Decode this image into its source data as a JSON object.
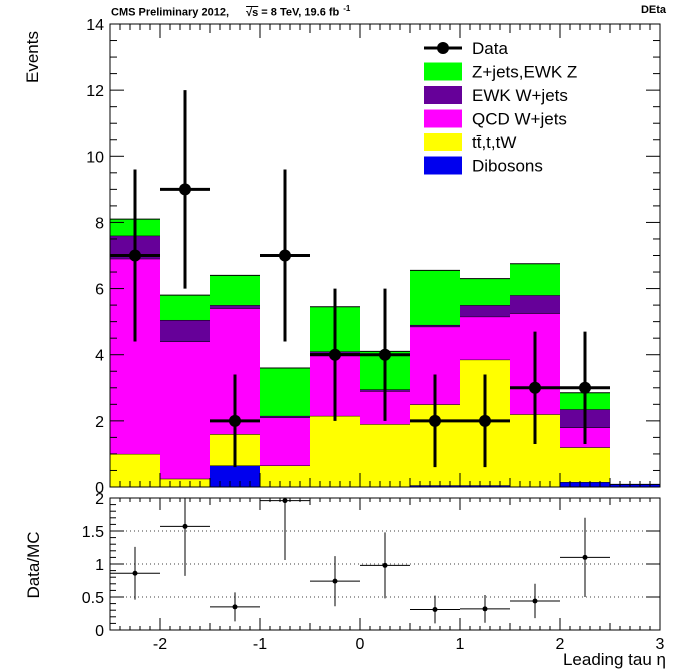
{
  "header": {
    "left_prefix": "CMS Preliminary 2012,",
    "sqrt": "√s",
    "energy": " = 8 TeV, 19.6 fb",
    "exponent": "-1",
    "right": "DEta"
  },
  "chart_data": [
    {
      "type": "bar",
      "subtype": "stacked-histogram-with-data-points",
      "ylabel": "Events",
      "ylim": [
        0,
        14
      ],
      "xlim": [
        -2.5,
        3
      ],
      "yticks": [
        0,
        2,
        4,
        6,
        8,
        10,
        12,
        14
      ],
      "bin_edges": [
        -2.5,
        -2,
        -1.5,
        -1,
        -0.5,
        0,
        0.5,
        1,
        1.5,
        2,
        2.5,
        3
      ],
      "stack_order_bottom_to_top": [
        "Dibosons",
        "tt,t,tW",
        "QCD W+jets",
        "EWK W+jets",
        "Z+jets,EWK Z"
      ],
      "series": [
        {
          "name": "Dibosons",
          "color": "#0000ee",
          "values": [
            0.0,
            0.0,
            0.65,
            0.0,
            0.0,
            0.0,
            0.05,
            0.05,
            0.0,
            0.15,
            0.08
          ]
        },
        {
          "name": "tt,t,tW",
          "color": "#ffff00",
          "values": [
            1.0,
            0.25,
            0.95,
            0.65,
            2.15,
            1.9,
            2.45,
            3.8,
            2.2,
            1.05,
            0.0
          ]
        },
        {
          "name": "QCD W+jets",
          "color": "#ff00ff",
          "values": [
            5.9,
            4.15,
            3.8,
            1.45,
            1.9,
            1.0,
            2.35,
            1.3,
            3.05,
            0.6,
            0.0
          ]
        },
        {
          "name": "EWK W+jets",
          "color": "#660099",
          "values": [
            0.7,
            0.65,
            0.1,
            0.05,
            0.05,
            0.05,
            0.05,
            0.35,
            0.55,
            0.55,
            0.0
          ]
        },
        {
          "name": "Z+jets,EWK Z",
          "color": "#00ff00",
          "values": [
            0.5,
            0.75,
            0.9,
            1.45,
            1.35,
            1.15,
            1.65,
            0.8,
            0.95,
            0.5,
            0.0
          ]
        }
      ],
      "data_points": {
        "name": "Data",
        "x": [
          -2.25,
          -1.75,
          -1.25,
          -0.75,
          -0.25,
          0.25,
          0.75,
          1.25,
          1.75,
          2.25
        ],
        "y": [
          7,
          9,
          2,
          7,
          4,
          4,
          2,
          2,
          3,
          3
        ],
        "err_low": [
          2.6,
          3.0,
          1.4,
          2.6,
          2.0,
          2.0,
          1.4,
          1.4,
          1.7,
          1.7
        ],
        "err_high": [
          2.6,
          3.0,
          1.4,
          2.6,
          2.0,
          2.0,
          1.4,
          1.4,
          1.7,
          1.7
        ]
      },
      "legend": {
        "placement": "top-right",
        "entries": [
          {
            "label": "Data",
            "kind": "marker",
            "color": "#000000"
          },
          {
            "label": "Z+jets,EWK Z",
            "kind": "box",
            "color": "#00ff00"
          },
          {
            "label": "EWK W+jets",
            "kind": "box",
            "color": "#660099"
          },
          {
            "label": "QCD W+jets",
            "kind": "box",
            "color": "#ff00ff"
          },
          {
            "label": "tt̄,t,tW",
            "kind": "box",
            "color": "#ffff00"
          },
          {
            "label": "Dibosons",
            "kind": "box",
            "color": "#0000ee"
          }
        ]
      }
    },
    {
      "type": "scatter",
      "subtype": "ratio-with-error-bars",
      "ylabel": "Data/MC",
      "xlabel": "Leading tau η",
      "ylim": [
        0,
        2
      ],
      "xlim": [
        -2.5,
        3
      ],
      "yticks": [
        0,
        0.5,
        1,
        1.5,
        2
      ],
      "xticks": [
        -2,
        -1,
        0,
        1,
        2,
        3
      ],
      "grid_y": [
        0.5,
        1,
        1.5
      ],
      "x": [
        -2.25,
        -1.75,
        -1.25,
        -0.75,
        -0.25,
        0.25,
        0.75,
        1.25,
        1.75,
        2.25
      ],
      "y": [
        0.86,
        1.57,
        0.35,
        1.96,
        0.74,
        0.98,
        0.31,
        0.32,
        0.44,
        1.1
      ],
      "err_low": [
        0.4,
        0.75,
        0.22,
        0.9,
        0.38,
        0.5,
        0.21,
        0.21,
        0.26,
        0.6
      ],
      "err_high": [
        0.4,
        0.75,
        0.22,
        0.9,
        0.38,
        0.5,
        0.21,
        0.21,
        0.26,
        0.6
      ]
    }
  ]
}
